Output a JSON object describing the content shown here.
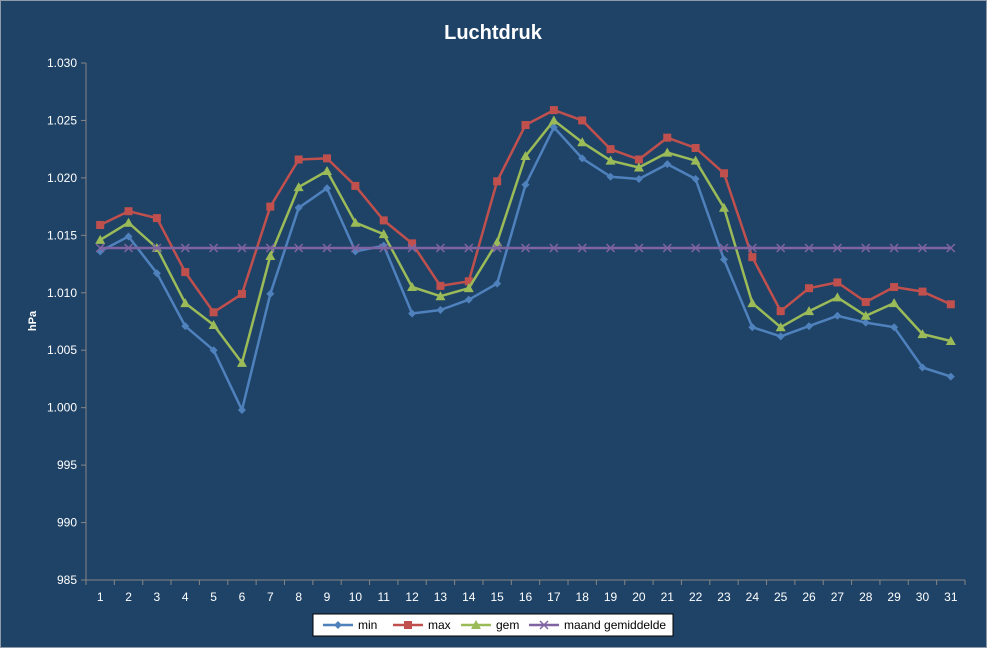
{
  "chart_data": {
    "type": "line",
    "title": "Luchtdruk",
    "ylabel": "hPa",
    "xlabel": "",
    "categories": [
      "1",
      "2",
      "3",
      "4",
      "5",
      "6",
      "7",
      "8",
      "9",
      "10",
      "11",
      "12",
      "13",
      "14",
      "15",
      "16",
      "17",
      "18",
      "19",
      "20",
      "21",
      "22",
      "23",
      "24",
      "25",
      "26",
      "27",
      "28",
      "29",
      "30",
      "31"
    ],
    "y_ticks": [
      "985",
      "990",
      "995",
      "1.000",
      "1.005",
      "1.010",
      "1.015",
      "1.020",
      "1.025",
      "1.030"
    ],
    "ylim": [
      985,
      1030
    ],
    "grid": false,
    "legend_position": "bottom",
    "series": [
      {
        "name": "min",
        "color": "#4f81bd",
        "marker": "diamond",
        "values": [
          1013.6,
          1014.9,
          1011.7,
          1007.1,
          1005.0,
          999.8,
          1009.9,
          1017.4,
          1019.1,
          1013.6,
          1014.1,
          1008.2,
          1008.5,
          1009.4,
          1010.8,
          1019.4,
          1024.4,
          1021.7,
          1020.1,
          1019.9,
          1021.2,
          1019.9,
          1012.9,
          1007.0,
          1006.2,
          1007.1,
          1008.0,
          1007.4,
          1007.0,
          1003.5,
          1002.7
        ]
      },
      {
        "name": "max",
        "color": "#c0504d",
        "marker": "square",
        "values": [
          1015.9,
          1017.1,
          1016.5,
          1011.8,
          1008.3,
          1009.9,
          1017.5,
          1021.6,
          1021.7,
          1019.3,
          1016.3,
          1014.3,
          1010.6,
          1011.0,
          1019.7,
          1024.6,
          1025.9,
          1025.0,
          1022.5,
          1021.6,
          1023.5,
          1022.6,
          1020.4,
          1013.1,
          1008.4,
          1010.4,
          1010.9,
          1009.2,
          1010.5,
          1010.1,
          1009.0
        ]
      },
      {
        "name": "gem",
        "color": "#9bbb59",
        "marker": "triangle",
        "values": [
          1014.6,
          1016.1,
          1013.9,
          1009.1,
          1007.2,
          1003.9,
          1013.2,
          1019.2,
          1020.6,
          1016.1,
          1015.1,
          1010.5,
          1009.7,
          1010.4,
          1014.4,
          1021.9,
          1025.0,
          1023.1,
          1021.5,
          1020.9,
          1022.2,
          1021.5,
          1017.4,
          1009.1,
          1007.0,
          1008.4,
          1009.6,
          1008.0,
          1009.1,
          1006.4,
          1005.8
        ]
      },
      {
        "name": "maand gemiddelde",
        "color": "#8064a2",
        "marker": "x",
        "values": [
          1013.9,
          1013.9,
          1013.9,
          1013.9,
          1013.9,
          1013.9,
          1013.9,
          1013.9,
          1013.9,
          1013.9,
          1013.9,
          1013.9,
          1013.9,
          1013.9,
          1013.9,
          1013.9,
          1013.9,
          1013.9,
          1013.9,
          1013.9,
          1013.9,
          1013.9,
          1013.9,
          1013.9,
          1013.9,
          1013.9,
          1013.9,
          1013.9,
          1013.9,
          1013.9,
          1013.9
        ]
      }
    ]
  }
}
